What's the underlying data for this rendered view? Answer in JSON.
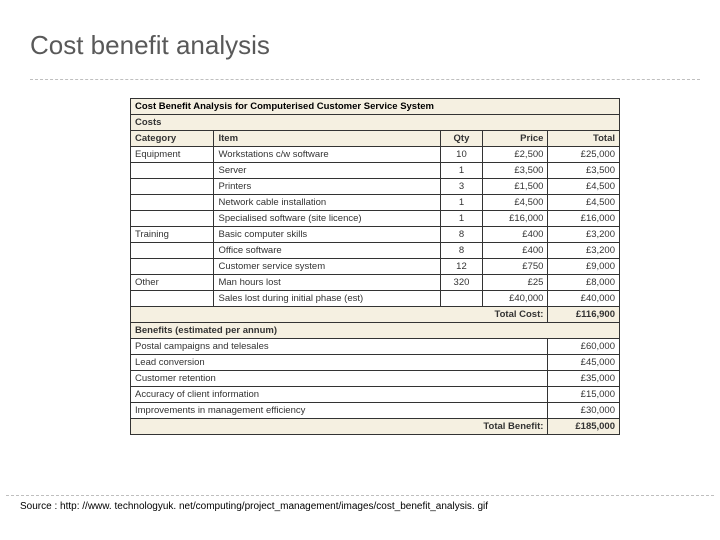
{
  "title": "Cost benefit analysis",
  "table": {
    "header_title": "Cost Benefit Analysis for Computerised Customer Service System",
    "costs_label": "Costs",
    "columns": {
      "category": "Category",
      "item": "Item",
      "qty": "Qty",
      "price": "Price",
      "total": "Total"
    },
    "rows": [
      {
        "category": "Equipment",
        "item": "Workstations c/w software",
        "qty": "10",
        "price": "£2,500",
        "total": "£25,000"
      },
      {
        "category": "",
        "item": "Server",
        "qty": "1",
        "price": "£3,500",
        "total": "£3,500"
      },
      {
        "category": "",
        "item": "Printers",
        "qty": "3",
        "price": "£1,500",
        "total": "£4,500"
      },
      {
        "category": "",
        "item": "Network cable installation",
        "qty": "1",
        "price": "£4,500",
        "total": "£4,500"
      },
      {
        "category": "",
        "item": "Specialised software (site licence)",
        "qty": "1",
        "price": "£16,000",
        "total": "£16,000"
      },
      {
        "category": "Training",
        "item": "Basic computer skills",
        "qty": "8",
        "price": "£400",
        "total": "£3,200"
      },
      {
        "category": "",
        "item": "Office software",
        "qty": "8",
        "price": "£400",
        "total": "£3,200"
      },
      {
        "category": "",
        "item": "Customer service system",
        "qty": "12",
        "price": "£750",
        "total": "£9,000"
      },
      {
        "category": "Other",
        "item": "Man hours lost",
        "qty": "320",
        "price": "£25",
        "total": "£8,000"
      },
      {
        "category": "",
        "item": "Sales lost during initial phase (est)",
        "qty": "",
        "price": "£40,000",
        "total": "£40,000"
      }
    ],
    "total_cost_label": "Total Cost:",
    "total_cost_value": "£116,900",
    "benefits_label": "Benefits (estimated per annum)",
    "benefits": [
      {
        "item": "Postal campaigns and telesales",
        "total": "£60,000"
      },
      {
        "item": "Lead conversion",
        "total": "£45,000"
      },
      {
        "item": "Customer retention",
        "total": "£35,000"
      },
      {
        "item": "Accuracy of client information",
        "total": "£15,000"
      },
      {
        "item": "Improvements in management efficiency",
        "total": "£30,000"
      }
    ],
    "total_benefit_label": "Total Benefit:",
    "total_benefit_value": "£185,000",
    "background_color": "#f5f0e1",
    "border_color": "#333333",
    "font_size": 9.5
  },
  "source": "Source : http: //www. technologyuk. net/computing/project_management/images/cost_benefit_analysis. gif"
}
